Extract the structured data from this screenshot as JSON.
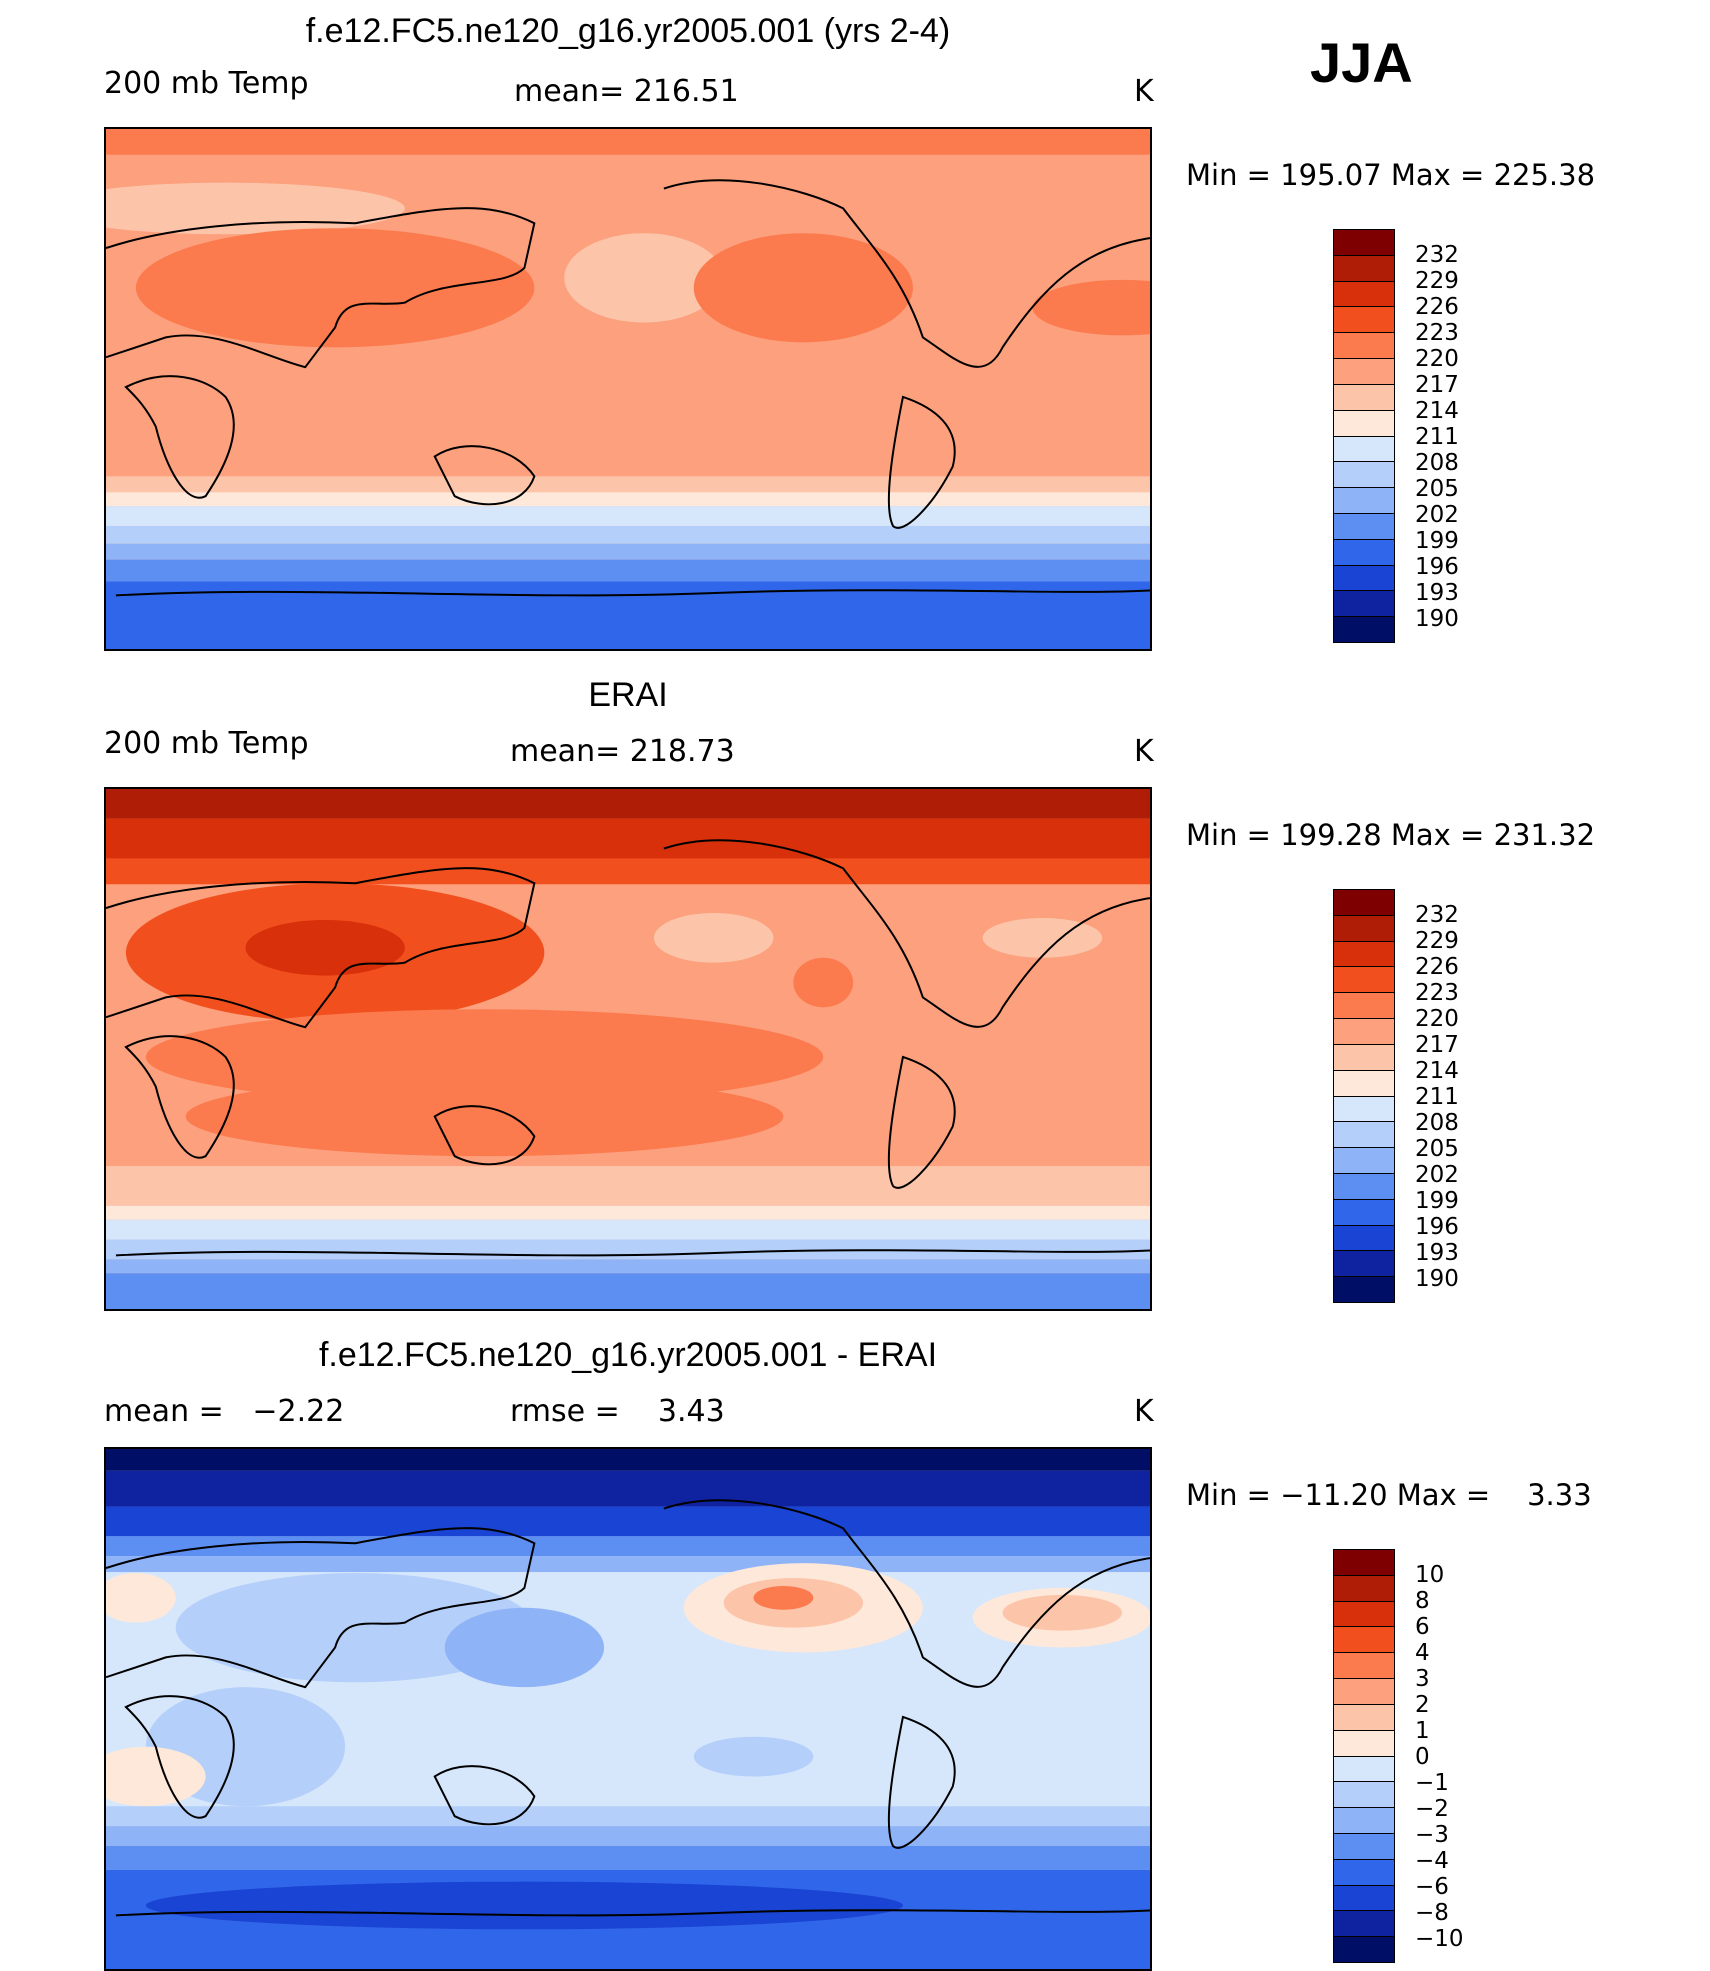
{
  "season": "JJA",
  "panels": [
    {
      "title": "f.e12.FC5.ne120_g16.yr2005.001 (yrs 2-4)",
      "left_label": "200 mb Temp",
      "center_label": "mean= 216.51",
      "units": "K",
      "min_max": "Min = 195.07 Max = 225.38",
      "colorbar_labels": [
        "232",
        "229",
        "226",
        "223",
        "220",
        "217",
        "214",
        "211",
        "208",
        "205",
        "202",
        "199",
        "196",
        "193",
        "190"
      ]
    },
    {
      "title": "ERAI",
      "left_label": "200 mb Temp",
      "center_label": "mean= 218.73",
      "units": "K",
      "min_max": "Min = 199.28 Max = 231.32",
      "colorbar_labels": [
        "232",
        "229",
        "226",
        "223",
        "220",
        "217",
        "214",
        "211",
        "208",
        "205",
        "202",
        "199",
        "196",
        "193",
        "190"
      ]
    },
    {
      "title": "f.e12.FC5.ne120_g16.yr2005.001 - ERAI",
      "left_label": "mean =   −2.22",
      "center_label": "rmse =    3.43",
      "units": "K",
      "min_max": "Min = −11.20 Max =    3.33",
      "colorbar_labels": [
        "10",
        "8",
        "6",
        "4",
        "3",
        "2",
        "1",
        "0",
        "−1",
        "−2",
        "−3",
        "−4",
        "−6",
        "−8",
        "−10"
      ]
    }
  ],
  "colors": {
    "abs_scale": [
      "#7f0000",
      "#b01d06",
      "#d7300a",
      "#f1501e",
      "#fb7a4e",
      "#fca07e",
      "#fcc5aa",
      "#fee8da",
      "#d6e7fb",
      "#b4cffa",
      "#8fb3f7",
      "#5d8ef2",
      "#3066ea",
      "#1a44d3",
      "#0f23a0",
      "#000e66"
    ],
    "diff_scale": [
      "#7f0000",
      "#b01d06",
      "#d7300a",
      "#f1501e",
      "#fb7a4e",
      "#fca07e",
      "#fcc5aa",
      "#fee8da",
      "#d6e7fb",
      "#b4cffa",
      "#8fb3f7",
      "#5d8ef2",
      "#3066ea",
      "#1a44d3",
      "#0f23a0",
      "#000e66"
    ]
  }
}
